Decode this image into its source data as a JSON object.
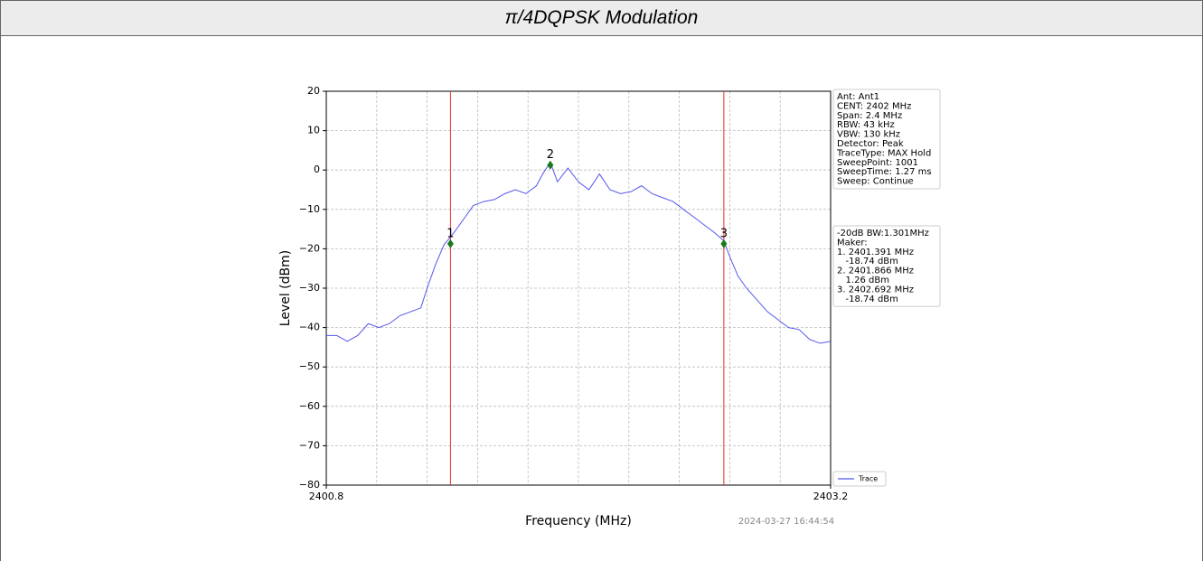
{
  "header": {
    "title": "π/4DQPSK Modulation"
  },
  "chart_data": {
    "type": "line",
    "xlabel": "Frequency (MHz)",
    "ylabel": "Level (dBm)",
    "xlim": [
      2400.8,
      2403.2
    ],
    "ylim": [
      -80,
      20
    ],
    "xticks": [
      2400.8,
      2403.2
    ],
    "xgrid": [
      2401.04,
      2401.28,
      2401.52,
      2401.76,
      2402.0,
      2402.24,
      2402.48,
      2402.72,
      2402.96
    ],
    "yticks": [
      {
        "value": 20,
        "label": "20"
      },
      {
        "value": 10,
        "label": "10"
      },
      {
        "value": 0,
        "label": "0"
      },
      {
        "value": -10,
        "label": "−10"
      },
      {
        "value": -20,
        "label": "−20"
      },
      {
        "value": -30,
        "label": "−30"
      },
      {
        "value": -40,
        "label": "−40"
      },
      {
        "value": -50,
        "label": "−50"
      },
      {
        "value": -60,
        "label": "−60"
      },
      {
        "value": -70,
        "label": "−70"
      },
      {
        "value": -80,
        "label": "−80"
      }
    ],
    "grid": true,
    "series": [
      {
        "name": "Trace",
        "color": "#5555ee",
        "x": [
          2400.8,
          2400.85,
          2400.9,
          2400.95,
          2401.0,
          2401.05,
          2401.1,
          2401.15,
          2401.2,
          2401.25,
          2401.28,
          2401.32,
          2401.36,
          2401.391,
          2401.42,
          2401.46,
          2401.5,
          2401.55,
          2401.6,
          2401.65,
          2401.7,
          2401.75,
          2401.8,
          2401.83,
          2401.866,
          2401.9,
          2401.95,
          2402.0,
          2402.05,
          2402.1,
          2402.15,
          2402.2,
          2402.25,
          2402.3,
          2402.35,
          2402.4,
          2402.45,
          2402.5,
          2402.55,
          2402.6,
          2402.65,
          2402.692,
          2402.72,
          2402.76,
          2402.8,
          2402.85,
          2402.9,
          2402.95,
          2403.0,
          2403.05,
          2403.1,
          2403.15,
          2403.2
        ],
        "values": [
          -42,
          -42,
          -43.5,
          -42,
          -39,
          -40,
          -39,
          -37,
          -36,
          -35,
          -30,
          -24,
          -19,
          -17,
          -15,
          -12,
          -9,
          -8,
          -7.5,
          -6,
          -5,
          -6,
          -4,
          -1,
          2,
          -3,
          0.5,
          -3,
          -5,
          -1,
          -5,
          -6,
          -5.5,
          -4,
          -6,
          -7,
          -8,
          -10,
          -12,
          -14,
          -16,
          -18,
          -22,
          -27,
          -30,
          -33,
          -36,
          -38,
          -40,
          -40.5,
          -43,
          -44,
          -43.5
        ]
      }
    ],
    "markers": [
      {
        "label": "1",
        "x": 2401.391,
        "y": -18.74,
        "line": true
      },
      {
        "label": "2",
        "x": 2401.866,
        "y": 1.26,
        "line": false
      },
      {
        "label": "3",
        "x": 2402.692,
        "y": -18.74,
        "line": true
      }
    ],
    "legend": "lower right",
    "info": [
      "Ant: Ant1",
      "CENT: 2402 MHz",
      "Span: 2.4 MHz",
      "RBW: 43 kHz",
      "VBW: 130 kHz",
      "Detector: Peak",
      "TraceType: MAX Hold",
      "SweepPoint: 1001",
      "SweepTime: 1.27 ms",
      "Sweep: Continue"
    ],
    "results": [
      "-20dB BW:1.301MHz",
      "Maker:",
      "1. 2401.391 MHz",
      "   -18.74 dBm",
      "2. 2401.866 MHz",
      "   1.26 dBm",
      "3. 2402.692 MHz",
      "   -18.74 dBm"
    ],
    "timestamp": "2024-03-27 16:44:54"
  }
}
